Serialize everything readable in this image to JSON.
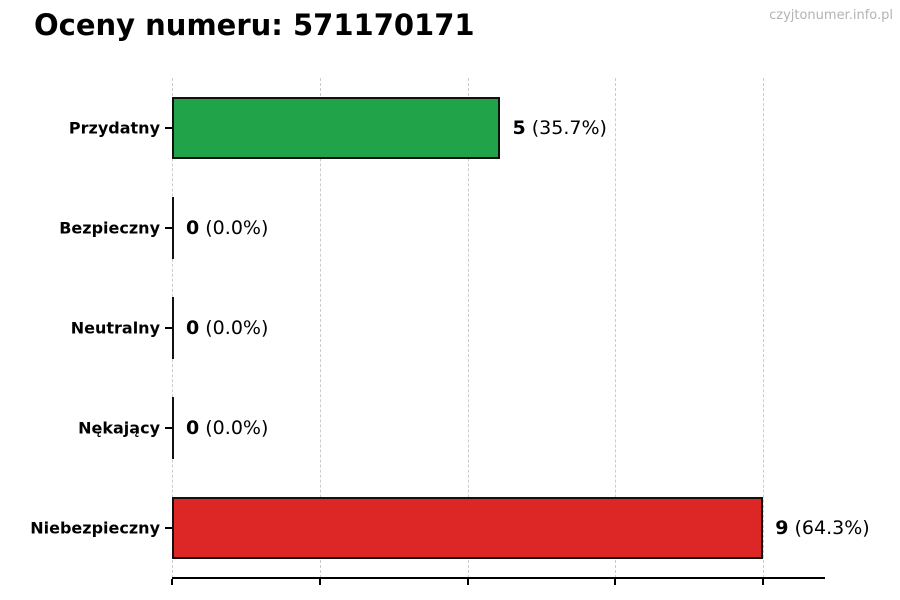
{
  "watermark": "czyjtonumer.info.pl",
  "chart_data": {
    "type": "bar",
    "orientation": "horizontal",
    "title": "Oceny numeru: 571170171",
    "categories": [
      "Przydatny",
      "Bezpieczny",
      "Neutralny",
      "Nękający",
      "Niebezpieczny"
    ],
    "values": [
      5,
      0,
      0,
      0,
      9
    ],
    "percent_labels": [
      "35.7%",
      "0.0%",
      "0.0%",
      "0.0%",
      "64.3%"
    ],
    "bar_colors": [
      "#21a449",
      null,
      null,
      null,
      "#dd2626"
    ],
    "xlim": [
      0,
      9.94
    ],
    "x_gridline_values": [
      0,
      2.25,
      4.5,
      6.75,
      9
    ],
    "x_tick_labels": [],
    "grid": true,
    "legend_visible": false,
    "styles": {
      "bar_edge_color": "#111111",
      "grid_color": "#cbcbcb",
      "axis_color": "#000000",
      "title_color": "#000000",
      "label_color": "#000000",
      "watermark_color": "#b3b3b3"
    }
  }
}
